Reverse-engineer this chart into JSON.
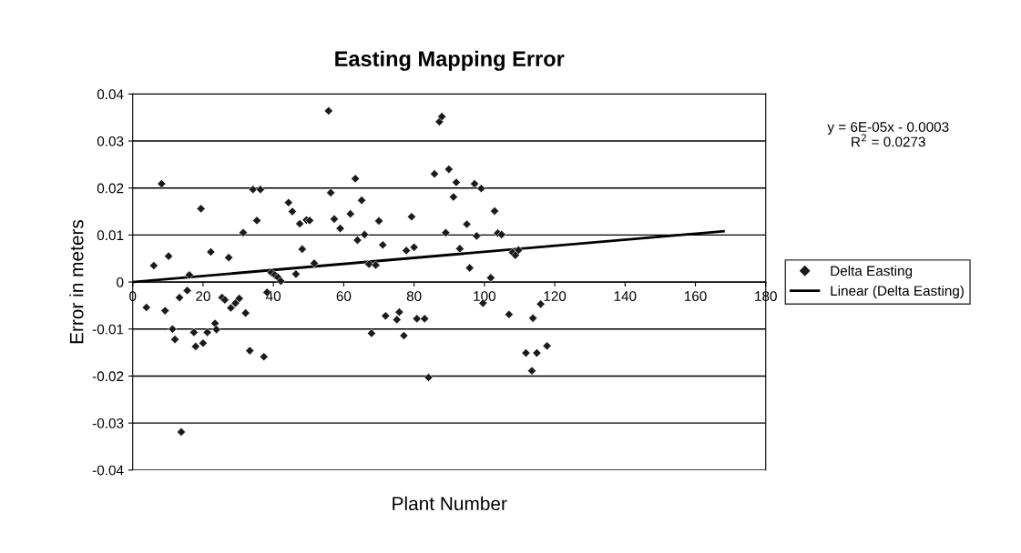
{
  "chart_data": {
    "type": "scatter",
    "title": "Easting Mapping Error",
    "xlabel": "Plant Number",
    "ylabel": "Error in meters",
    "xlim": [
      0,
      180
    ],
    "xticks": [
      0,
      20,
      40,
      60,
      80,
      100,
      120,
      140,
      160,
      180
    ],
    "ylim": [
      -0.04,
      0.04
    ],
    "yticks": [
      -0.04,
      -0.03,
      -0.02,
      -0.01,
      0,
      0.01,
      0.02,
      0.03,
      0.04
    ],
    "grid": "y",
    "legend": "right",
    "annotations": [
      "y = 6E-05x - 0.0003\nR$^{2}$ = 0.0273"
    ],
    "series": [
      {
        "name": "Delta Easting",
        "marker": "diamond",
        "color": "#1a1a1a",
        "x": [
          3.9,
          6.0,
          8.2,
          9.2,
          10.2,
          11.3,
          12.0,
          13.3,
          13.8,
          15.5,
          16.1,
          17.4,
          17.9,
          19.4,
          20.0,
          21.2,
          22.2,
          23.4,
          23.8,
          25.4,
          26.2,
          27.3,
          27.9,
          29.2,
          30.3,
          31.4,
          32.1,
          33.3,
          34.2,
          35.3,
          36.3,
          37.3,
          38.2,
          39.4,
          40.4,
          41.3,
          42.1,
          44.3,
          45.4,
          46.4,
          47.5,
          48.2,
          49.4,
          50.3,
          51.6,
          55.7,
          56.3,
          57.3,
          59.0,
          61.9,
          63.3,
          63.9,
          65.1,
          65.9,
          67.2,
          67.9,
          69.1,
          70.0,
          71.1,
          71.9,
          75.1,
          75.8,
          77.1,
          77.8,
          79.3,
          80.0,
          80.8,
          83.0,
          84.1,
          85.8,
          87.2,
          87.9,
          89.0,
          89.9,
          91.2,
          92.0,
          93.0,
          95.0,
          95.8,
          97.2,
          97.8,
          99.1,
          99.6,
          101.8,
          102.9,
          103.8,
          104.9,
          107.0,
          108.0,
          108.8,
          109.7,
          111.8,
          113.5,
          113.8,
          114.9,
          116.0,
          117.8
        ],
        "values": [
          -0.0054,
          0.0035,
          0.0209,
          -0.0061,
          0.0055,
          -0.01,
          -0.0122,
          -0.0033,
          -0.0319,
          -0.0018,
          0.0015,
          -0.0107,
          -0.0137,
          0.0156,
          -0.013,
          -0.0107,
          0.0064,
          -0.0088,
          -0.0101,
          -0.0033,
          -0.0038,
          0.0052,
          -0.0055,
          -0.0045,
          -0.0035,
          0.0105,
          -0.0066,
          -0.0146,
          0.0197,
          0.0131,
          0.0197,
          -0.0159,
          -0.0022,
          0.002,
          0.0015,
          0.001,
          0.0002,
          0.0169,
          0.015,
          0.0017,
          0.0124,
          0.007,
          0.0132,
          0.0131,
          0.004,
          0.0364,
          0.019,
          0.0134,
          0.0114,
          0.0145,
          0.022,
          0.0089,
          0.0174,
          0.0101,
          0.0038,
          -0.0109,
          0.0036,
          0.013,
          0.0079,
          -0.0072,
          -0.008,
          -0.0064,
          -0.0114,
          0.0067,
          0.0139,
          0.0074,
          -0.0078,
          -0.0078,
          -0.0203,
          0.023,
          0.0341,
          0.0352,
          0.0105,
          0.024,
          0.0181,
          0.0212,
          0.0071,
          0.0123,
          0.003,
          0.0209,
          0.0098,
          0.0199,
          -0.0045,
          0.0009,
          0.0151,
          0.0104,
          0.0101,
          -0.0069,
          0.0063,
          0.0057,
          0.0068,
          -0.0151,
          -0.0189,
          -0.0077,
          -0.0151,
          -0.0047,
          -0.0136
        ]
      },
      {
        "name": "Linear (Delta Easting)",
        "type": "line",
        "color": "#000000",
        "marker": "none",
        "x": [
          0,
          168
        ],
        "values": [
          0.0,
          0.0108
        ]
      }
    ]
  }
}
